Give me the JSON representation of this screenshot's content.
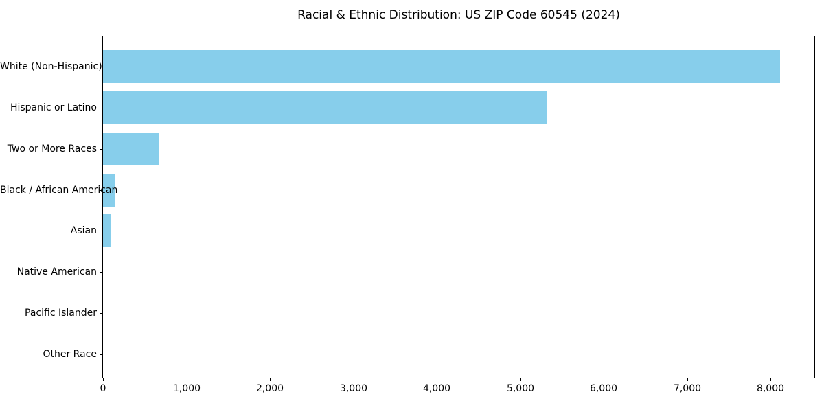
{
  "page": {
    "background": "#ffffff",
    "text_color": "#000000",
    "axis_color": "#000000"
  },
  "chart_data": {
    "type": "bar",
    "orientation": "horizontal",
    "title": "Racial & Ethnic Distribution: US ZIP Code 60545 (2024)",
    "xlabel": "",
    "ylabel": "",
    "categories": [
      "White (Non-Hispanic)",
      "Hispanic or Latino",
      "Two or More Races",
      "Black / African American",
      "Asian",
      "Native American",
      "Pacific Islander",
      "Other Race"
    ],
    "values": [
      8110,
      5320,
      670,
      150,
      100,
      0,
      0,
      0
    ],
    "xlim": [
      0,
      8525
    ],
    "x_ticks": [
      0,
      1000,
      2000,
      3000,
      4000,
      5000,
      6000,
      7000,
      8000
    ],
    "x_tick_labels": [
      "0",
      "1,000",
      "2,000",
      "3,000",
      "4,000",
      "5,000",
      "6,000",
      "7,000",
      "8,000"
    ],
    "bar_color": "#87CEEB",
    "grid": false,
    "legend": false
  }
}
